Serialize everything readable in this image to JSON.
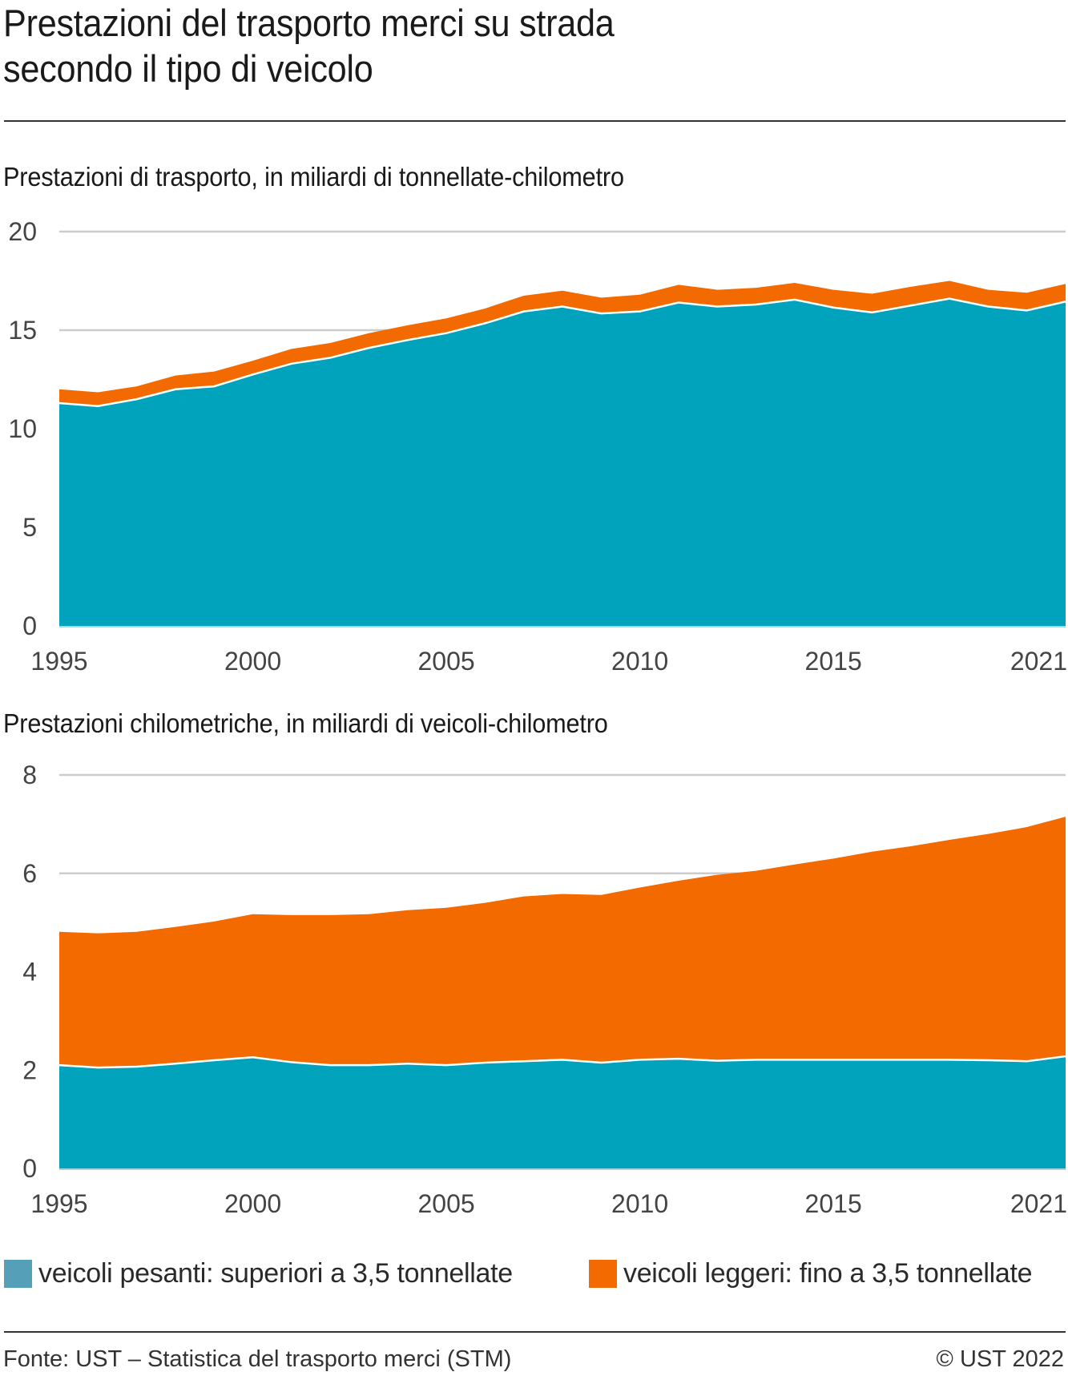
{
  "header": {
    "title_line1": "Prestazioni del trasporto merci su strada",
    "title_line2": "secondo il tipo di veicolo"
  },
  "colors": {
    "heavy": "#00A3BB",
    "light": "#F36A00",
    "heavy_legend": "#55A0B8",
    "grid": "#CCCCCC"
  },
  "legend": {
    "items": [
      {
        "label": "veicoli pesanti: superiori a 3,5 tonnellate",
        "color": "#55A0B8"
      },
      {
        "label": "veicoli leggeri: fino a 3,5 tonnellate",
        "color": "#F36A00"
      }
    ]
  },
  "footer": {
    "source": "Fonte: UST – Statistica del trasporto merci (STM)",
    "copyright": "© UST 2022"
  },
  "chart_data": [
    {
      "type": "area",
      "stacked": true,
      "title": "Prestazioni di trasporto, in miliardi di tonnellate-chilometro",
      "xlabel": "",
      "ylabel": "",
      "x": [
        1995,
        1996,
        1997,
        1998,
        1999,
        2000,
        2001,
        2002,
        2003,
        2004,
        2005,
        2006,
        2007,
        2008,
        2009,
        2010,
        2011,
        2012,
        2013,
        2014,
        2015,
        2016,
        2017,
        2018,
        2019,
        2020,
        2021
      ],
      "xticks": [
        "1995",
        "2000",
        "2005",
        "2010",
        "2015",
        "2021"
      ],
      "ylim": [
        0,
        20
      ],
      "yticks": [
        "0",
        "5",
        "10",
        "15",
        "20"
      ],
      "grid": true,
      "legend": "bottom",
      "series": [
        {
          "name": "veicoli pesanti: superiori a 3,5 tonnellate",
          "values": [
            11.3,
            11.15,
            11.5,
            12.0,
            12.15,
            12.75,
            13.3,
            13.6,
            14.1,
            14.5,
            14.85,
            15.35,
            15.95,
            16.2,
            15.85,
            15.95,
            16.4,
            16.2,
            16.3,
            16.55,
            16.15,
            15.9,
            16.25,
            16.6,
            16.2,
            16.0,
            16.45
          ]
        },
        {
          "name": "veicoli leggeri: fino a 3,5 tonnellate",
          "values": [
            0.7,
            0.7,
            0.65,
            0.7,
            0.75,
            0.7,
            0.75,
            0.75,
            0.75,
            0.75,
            0.75,
            0.75,
            0.8,
            0.8,
            0.8,
            0.85,
            0.9,
            0.85,
            0.85,
            0.85,
            0.9,
            0.95,
            0.95,
            0.9,
            0.85,
            0.9,
            0.9
          ]
        }
      ]
    },
    {
      "type": "area",
      "stacked": true,
      "title": "Prestazioni chilometriche, in miliardi di veicoli-chilometro",
      "xlabel": "",
      "ylabel": "",
      "x": [
        1995,
        1996,
        1997,
        1998,
        1999,
        2000,
        2001,
        2002,
        2003,
        2004,
        2005,
        2006,
        2007,
        2008,
        2009,
        2010,
        2011,
        2012,
        2013,
        2014,
        2015,
        2016,
        2017,
        2018,
        2019,
        2020,
        2021
      ],
      "xticks": [
        "1995",
        "2000",
        "2005",
        "2010",
        "2015",
        "2021"
      ],
      "ylim": [
        0,
        8
      ],
      "yticks": [
        "0",
        "2",
        "4",
        "6",
        "8"
      ],
      "grid": true,
      "legend": "bottom",
      "series": [
        {
          "name": "veicoli pesanti: superiori a 3,5 tonnellate",
          "values": [
            2.1,
            2.05,
            2.07,
            2.13,
            2.2,
            2.26,
            2.16,
            2.1,
            2.1,
            2.13,
            2.1,
            2.15,
            2.18,
            2.21,
            2.15,
            2.21,
            2.23,
            2.19,
            2.21,
            2.21,
            2.21,
            2.21,
            2.21,
            2.21,
            2.2,
            2.18,
            2.28
          ]
        },
        {
          "name": "veicoli leggeri: fino a 3,5 tonnellate",
          "values": [
            2.71,
            2.73,
            2.74,
            2.78,
            2.82,
            2.91,
            2.99,
            3.05,
            3.07,
            3.12,
            3.2,
            3.25,
            3.35,
            3.37,
            3.41,
            3.5,
            3.62,
            3.78,
            3.84,
            3.97,
            4.09,
            4.23,
            4.34,
            4.47,
            4.6,
            4.76,
            4.87
          ]
        }
      ]
    }
  ]
}
